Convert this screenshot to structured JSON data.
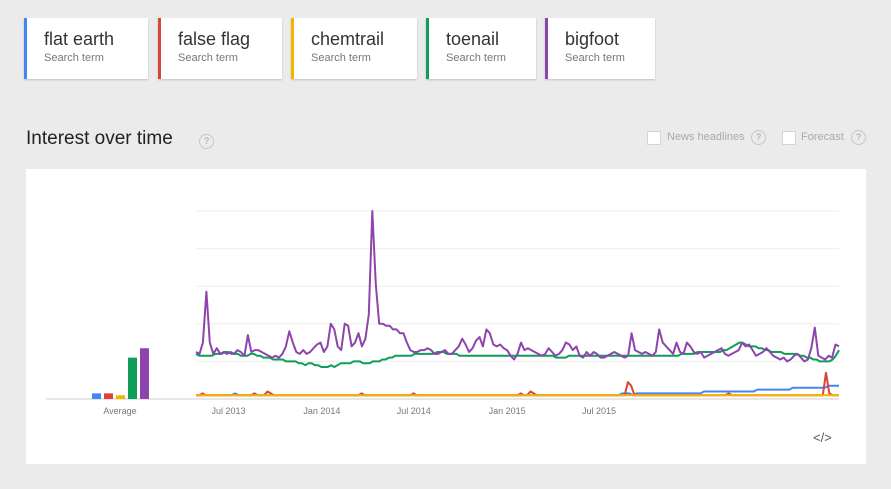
{
  "terms": [
    {
      "name": "flat earth",
      "sub": "Search term",
      "color": "#4285f4"
    },
    {
      "name": "false flag",
      "sub": "Search term",
      "color": "#db4437"
    },
    {
      "name": "chemtrail",
      "sub": "Search term",
      "color": "#f4b400"
    },
    {
      "name": "toenail",
      "sub": "Search term",
      "color": "#0f9d58"
    },
    {
      "name": "bigfoot",
      "sub": "Search term",
      "color": "#8e44ad"
    }
  ],
  "section": {
    "title": "Interest over time",
    "news_label": "News headlines",
    "forecast_label": "Forecast",
    "help_glyph": "?",
    "embed_glyph": "</>"
  },
  "chart_data": {
    "type": "line",
    "average_label": "Average",
    "averages": [
      {
        "name": "flat earth",
        "value": 3
      },
      {
        "name": "false flag",
        "value": 3
      },
      {
        "name": "chemtrail",
        "value": 2
      },
      {
        "name": "toenail",
        "value": 22
      },
      {
        "name": "bigfoot",
        "value": 27
      }
    ],
    "x_start": "2013-04-28",
    "x_step_days": 7,
    "xticks": [
      "Jul 2013",
      "Jan 2014",
      "Jul 2014",
      "Jan 2015",
      "Jul 2015"
    ],
    "xtick_dates": [
      "2013-07-01",
      "2014-01-01",
      "2014-07-01",
      "2015-01-01",
      "2015-07-01"
    ],
    "ylim": [
      0,
      100
    ],
    "grid": true,
    "series": [
      {
        "name": "flat earth",
        "color": "#4285f4",
        "values": [
          2,
          2,
          2,
          2,
          2,
          2,
          2,
          2,
          2,
          2,
          2,
          3,
          2,
          2,
          2,
          2,
          2,
          2,
          2,
          2,
          2,
          2,
          2,
          2,
          2,
          2,
          2,
          2,
          2,
          2,
          2,
          2,
          2,
          2,
          2,
          2,
          2,
          2,
          2,
          2,
          2,
          2,
          2,
          2,
          2,
          2,
          2,
          2,
          2,
          2,
          2,
          2,
          2,
          2,
          2,
          2,
          2,
          2,
          2,
          2,
          2,
          2,
          2,
          2,
          2,
          2,
          2,
          2,
          2,
          2,
          2,
          2,
          2,
          2,
          2,
          2,
          2,
          2,
          2,
          2,
          2,
          2,
          2,
          2,
          2,
          2,
          2,
          2,
          2,
          2,
          2,
          2,
          2,
          2,
          2,
          2,
          2,
          2,
          2,
          2,
          2,
          2,
          2,
          2,
          2,
          2,
          2,
          2,
          2,
          2,
          2,
          2,
          2,
          2,
          2,
          2,
          2,
          2,
          2,
          2,
          3,
          3,
          3,
          2,
          3,
          3,
          3,
          3,
          3,
          3,
          3,
          3,
          3,
          3,
          3,
          3,
          3,
          3,
          3,
          3,
          3,
          3,
          3,
          4,
          4,
          4,
          4,
          4,
          4,
          4,
          4,
          4,
          4,
          4,
          4,
          4,
          4,
          4,
          5,
          5,
          5,
          5,
          5,
          5,
          5,
          5,
          5,
          5,
          6,
          6,
          6,
          6,
          6,
          6,
          6,
          6,
          6,
          6,
          7,
          7,
          7,
          7
        ]
      },
      {
        "name": "false flag",
        "color": "#db4437",
        "values": [
          2,
          2,
          3,
          2,
          2,
          2,
          2,
          2,
          2,
          2,
          2,
          2,
          2,
          2,
          2,
          2,
          2,
          2,
          3,
          2,
          2,
          2,
          4,
          3,
          2,
          2,
          2,
          2,
          2,
          2,
          2,
          2,
          2,
          2,
          2,
          2,
          2,
          2,
          2,
          2,
          2,
          2,
          2,
          2,
          2,
          2,
          2,
          2,
          2,
          2,
          2,
          3,
          2,
          2,
          2,
          2,
          2,
          2,
          2,
          2,
          2,
          2,
          2,
          2,
          2,
          2,
          2,
          3,
          2,
          2,
          2,
          2,
          2,
          2,
          2,
          2,
          2,
          2,
          2,
          2,
          2,
          2,
          2,
          2,
          2,
          2,
          2,
          2,
          2,
          2,
          2,
          2,
          2,
          2,
          2,
          2,
          2,
          2,
          2,
          2,
          3,
          2,
          2,
          4,
          3,
          2,
          2,
          2,
          2,
          2,
          2,
          2,
          2,
          2,
          2,
          2,
          2,
          2,
          2,
          2,
          2,
          2,
          2,
          2,
          2,
          2,
          2,
          2,
          2,
          2,
          2,
          2,
          2,
          9,
          7,
          2,
          2,
          2,
          2,
          2,
          2,
          2,
          2,
          2,
          2,
          2,
          2,
          2,
          2,
          2,
          2,
          2,
          2,
          2,
          2,
          2,
          2,
          2,
          2,
          2,
          2,
          2,
          2,
          2,
          3,
          2,
          2,
          2,
          2,
          2,
          2,
          2,
          2,
          2,
          2,
          2,
          2,
          2,
          2,
          2,
          2,
          2,
          2,
          2,
          2,
          2,
          2,
          2,
          2,
          2,
          2,
          2,
          2,
          2,
          14,
          3,
          2,
          2,
          2
        ]
      },
      {
        "name": "chemtrail",
        "color": "#f4b400",
        "values": [
          2,
          2,
          2,
          2,
          2,
          2,
          2,
          2,
          2,
          2,
          2,
          2,
          2,
          2,
          2,
          2,
          2,
          2,
          2,
          2,
          2,
          2,
          2,
          2,
          2,
          2,
          2,
          2,
          2,
          2,
          2,
          2,
          2,
          2,
          2,
          2,
          2,
          2,
          2,
          2,
          2,
          2,
          2,
          2,
          2,
          2,
          2,
          2,
          2,
          2,
          2,
          2,
          2,
          2,
          2,
          2,
          2,
          2,
          2,
          2,
          2,
          2,
          2,
          2,
          2,
          2,
          2,
          2,
          2,
          2,
          2,
          2,
          2,
          2,
          2,
          2,
          2,
          2,
          2,
          2,
          2,
          2,
          2,
          2,
          2,
          2,
          2,
          2,
          2,
          2,
          2,
          2,
          2,
          2,
          2,
          2,
          2,
          2,
          2,
          2,
          2,
          2,
          2,
          2,
          2,
          2,
          2,
          2,
          2,
          2,
          2,
          2,
          2,
          2,
          2,
          2,
          2,
          2,
          2,
          2,
          2,
          2,
          2,
          2,
          2,
          2,
          2,
          2,
          2,
          2,
          2,
          2,
          2,
          2,
          2,
          2,
          2,
          2,
          2,
          2,
          2,
          2,
          2,
          2,
          2,
          2,
          2,
          2,
          2,
          2,
          2,
          2,
          2,
          2,
          2,
          2,
          2,
          2,
          2,
          2,
          2,
          2,
          2,
          2,
          2,
          2,
          2,
          2,
          2,
          2,
          2,
          2,
          2,
          2,
          2,
          2,
          2,
          2,
          2,
          2,
          2,
          2,
          2,
          2,
          2,
          2,
          2,
          2,
          2,
          2,
          2,
          2,
          2,
          2,
          2,
          2,
          2,
          2,
          2
        ]
      },
      {
        "name": "toenail",
        "color": "#0f9d58",
        "values": [
          24,
          23,
          23,
          23,
          23,
          23,
          24,
          24,
          24,
          25,
          25,
          24,
          24,
          24,
          23,
          23,
          23,
          24,
          24,
          23,
          23,
          22,
          22,
          22,
          21,
          21,
          21,
          21,
          20,
          20,
          20,
          20,
          19,
          19,
          18,
          19,
          19,
          18,
          18,
          17,
          17,
          17,
          18,
          17,
          18,
          19,
          19,
          19,
          19,
          20,
          20,
          20,
          19,
          19,
          19,
          20,
          20,
          20,
          21,
          21,
          22,
          22,
          23,
          23,
          23,
          23,
          23,
          23,
          24,
          24,
          24,
          24,
          24,
          24,
          24,
          25,
          25,
          25,
          24,
          24,
          24,
          24,
          23,
          23,
          23,
          23,
          23,
          23,
          23,
          23,
          23,
          23,
          23,
          23,
          23,
          23,
          23,
          23,
          23,
          23,
          23,
          23,
          23,
          23,
          23,
          23,
          23,
          23,
          23,
          23,
          23,
          23,
          22,
          22,
          22,
          22,
          23,
          23,
          23,
          23,
          23,
          23,
          23,
          23,
          23,
          23,
          23,
          23,
          23,
          23,
          23,
          23,
          23,
          23,
          23,
          23,
          23,
          23,
          23,
          23,
          23,
          23,
          23,
          23,
          23,
          23,
          23,
          23,
          23,
          23,
          23,
          24,
          24,
          24,
          24,
          24,
          25,
          25,
          25,
          25,
          25,
          25,
          25,
          25,
          26,
          26,
          27,
          28,
          29,
          30,
          30,
          29,
          28,
          28,
          28,
          27,
          27,
          26,
          26,
          25,
          25,
          25,
          25,
          24,
          24,
          24,
          24,
          24,
          23,
          23,
          22,
          22,
          21,
          21,
          20,
          20,
          20,
          20,
          21,
          23,
          26
        ]
      },
      {
        "name": "bigfoot",
        "color": "#8e44ad",
        "values": [
          25,
          24,
          30,
          57,
          30,
          24,
          27,
          24,
          25,
          24,
          25,
          24,
          26,
          25,
          23,
          34,
          25,
          26,
          26,
          25,
          24,
          23,
          22,
          23,
          22,
          24,
          28,
          36,
          30,
          25,
          24,
          26,
          24,
          25,
          27,
          29,
          30,
          25,
          28,
          40,
          37,
          28,
          26,
          40,
          39,
          28,
          30,
          35,
          28,
          32,
          45,
          100,
          61,
          40,
          40,
          39,
          39,
          37,
          37,
          35,
          35,
          30,
          26,
          25,
          25,
          26,
          26,
          27,
          26,
          24,
          24,
          25,
          26,
          24,
          24,
          26,
          28,
          32,
          29,
          25,
          27,
          31,
          33,
          28,
          37,
          35,
          29,
          28,
          29,
          27,
          26,
          23,
          21,
          24,
          30,
          26,
          27,
          26,
          25,
          24,
          23,
          24,
          27,
          25,
          23,
          24,
          26,
          30,
          29,
          26,
          28,
          23,
          22,
          25,
          23,
          25,
          24,
          22,
          22,
          23,
          24,
          25,
          24,
          23,
          22,
          23,
          35,
          26,
          25,
          24,
          25,
          24,
          23,
          25,
          37,
          30,
          28,
          26,
          24,
          30,
          25,
          24,
          30,
          28,
          25,
          24,
          25,
          22,
          23,
          24,
          25,
          26,
          27,
          24,
          23,
          24,
          25,
          26,
          30,
          28,
          29,
          26,
          23,
          24,
          25,
          27,
          25,
          23,
          22,
          21,
          22,
          20,
          21,
          23,
          24,
          22,
          20,
          21,
          27,
          38,
          23,
          22,
          21,
          23,
          22,
          29,
          28
        ]
      }
    ]
  }
}
